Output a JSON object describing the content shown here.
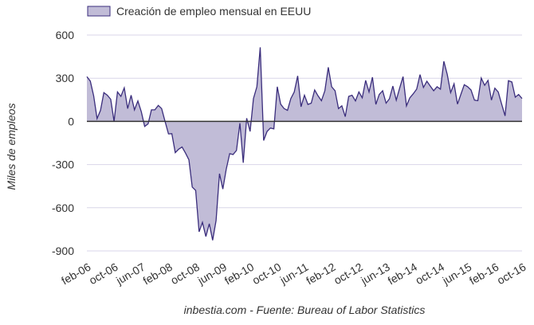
{
  "chart_data": {
    "type": "area",
    "title": "",
    "legend": {
      "label": "Creación de empleo mensual en EEUU",
      "placement": "top-left"
    },
    "xlabel": "",
    "ylabel": "Miles de empleos",
    "source": "inbestia.com - Fuente: Bureau of Labor Statistics",
    "ylim": [
      -900,
      600
    ],
    "yticks": [
      600,
      300,
      0,
      -300,
      -600,
      -900
    ],
    "grid": true,
    "xtick_labels": [
      "feb-06",
      "oct-06",
      "jun-07",
      "feb-08",
      "oct-08",
      "jun-09",
      "feb-10",
      "oct-10",
      "jun-11",
      "feb-12",
      "oct-12",
      "jun-13",
      "feb-14",
      "oct-14",
      "jun-15",
      "feb-16",
      "oct-16"
    ],
    "xtick_every_months": 8,
    "start": "feb-06",
    "end": "oct-16",
    "values": [
      311,
      280,
      178,
      20,
      77,
      200,
      182,
      154,
      0,
      205,
      174,
      233,
      89,
      182,
      80,
      142,
      67,
      -35,
      -17,
      80,
      80,
      111,
      89,
      0,
      -87,
      -85,
      -217,
      -193,
      -178,
      -220,
      -267,
      -456,
      -480,
      -767,
      -702,
      -800,
      -711,
      -826,
      -689,
      -363,
      -470,
      -331,
      -224,
      -230,
      -202,
      -13,
      -287,
      22,
      -70,
      159,
      241,
      515,
      -133,
      -70,
      -46,
      -52,
      241,
      120,
      89,
      77,
      159,
      205,
      316,
      102,
      182,
      118,
      127,
      218,
      177,
      144,
      213,
      376,
      241,
      213,
      89,
      108,
      33,
      174,
      182,
      142,
      205,
      164,
      285,
      205,
      307,
      118,
      187,
      213,
      127,
      157,
      246,
      148,
      231,
      311,
      108,
      164,
      192,
      224,
      325,
      236,
      279,
      246,
      213,
      241,
      224,
      418,
      325,
      200,
      261,
      120,
      187,
      255,
      241,
      218,
      148,
      144,
      301,
      251,
      285,
      148,
      231,
      205,
      120,
      39,
      283,
      274,
      168,
      187,
      159
    ],
    "colors": {
      "fill": "#c1bcd7",
      "line": "#3a2d7c",
      "grid": "#d9d5e8",
      "zero": "#333333",
      "text": "#333333"
    }
  }
}
